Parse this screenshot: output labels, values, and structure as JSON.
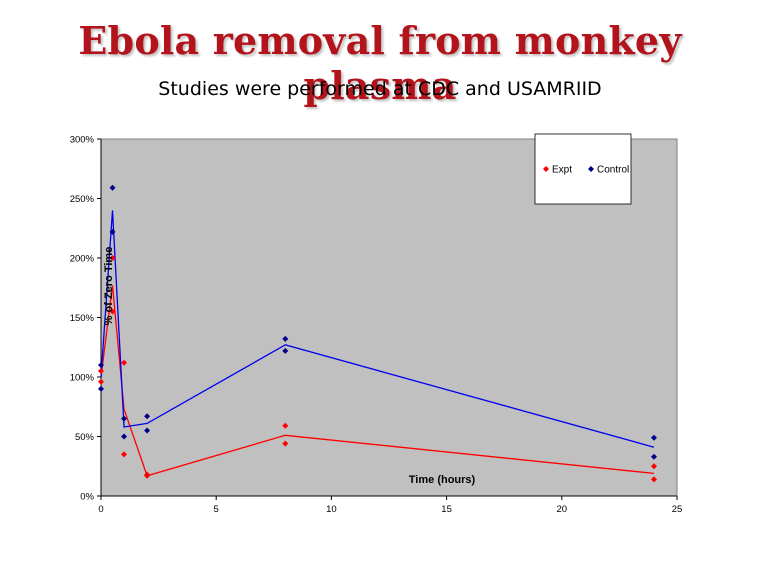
{
  "slide": {
    "title": "Ebola removal from monkey plasma",
    "subtitle": "Studies were performed at CDC and USAMRIID"
  },
  "chart_data": {
    "type": "scatter",
    "xlabel": "Time (hours)",
    "ylabel": "% of Zero Time",
    "xlim": [
      0,
      25
    ],
    "ylim": [
      0,
      300
    ],
    "x_ticks": [
      0,
      5,
      10,
      15,
      20,
      25
    ],
    "y_ticks": [
      0,
      50,
      100,
      150,
      200,
      250,
      300
    ],
    "y_tick_labels": [
      "0%",
      "50%",
      "100%",
      "150%",
      "200%",
      "250%",
      "300%"
    ],
    "plot_background": "#c0c0c0",
    "legend_position": "top-right",
    "grid": false,
    "series": [
      {
        "name": "Expt",
        "color": "#ff0000",
        "points": [
          [
            0,
            96
          ],
          [
            0,
            105
          ],
          [
            0.5,
            200
          ],
          [
            0.5,
            155
          ],
          [
            1,
            112
          ],
          [
            1,
            35
          ],
          [
            2,
            18
          ],
          [
            2,
            17
          ],
          [
            8,
            59
          ],
          [
            8,
            44
          ],
          [
            24,
            25
          ],
          [
            24,
            14
          ]
        ],
        "trend": [
          [
            0,
            100
          ],
          [
            0.5,
            177
          ],
          [
            1,
            73
          ],
          [
            2,
            17
          ],
          [
            8,
            51
          ],
          [
            24,
            19
          ]
        ]
      },
      {
        "name": "Control",
        "color": "#00008b",
        "points": [
          [
            0,
            110
          ],
          [
            0,
            90
          ],
          [
            0.5,
            259
          ],
          [
            0.5,
            222
          ],
          [
            1,
            65
          ],
          [
            1,
            50
          ],
          [
            2,
            67
          ],
          [
            2,
            55
          ],
          [
            8,
            132
          ],
          [
            8,
            122
          ],
          [
            24,
            49
          ],
          [
            24,
            33
          ]
        ],
        "trend": [
          [
            0,
            100
          ],
          [
            0.5,
            240
          ],
          [
            1,
            58
          ],
          [
            2,
            61
          ],
          [
            8,
            127
          ],
          [
            24,
            41
          ]
        ]
      }
    ]
  }
}
